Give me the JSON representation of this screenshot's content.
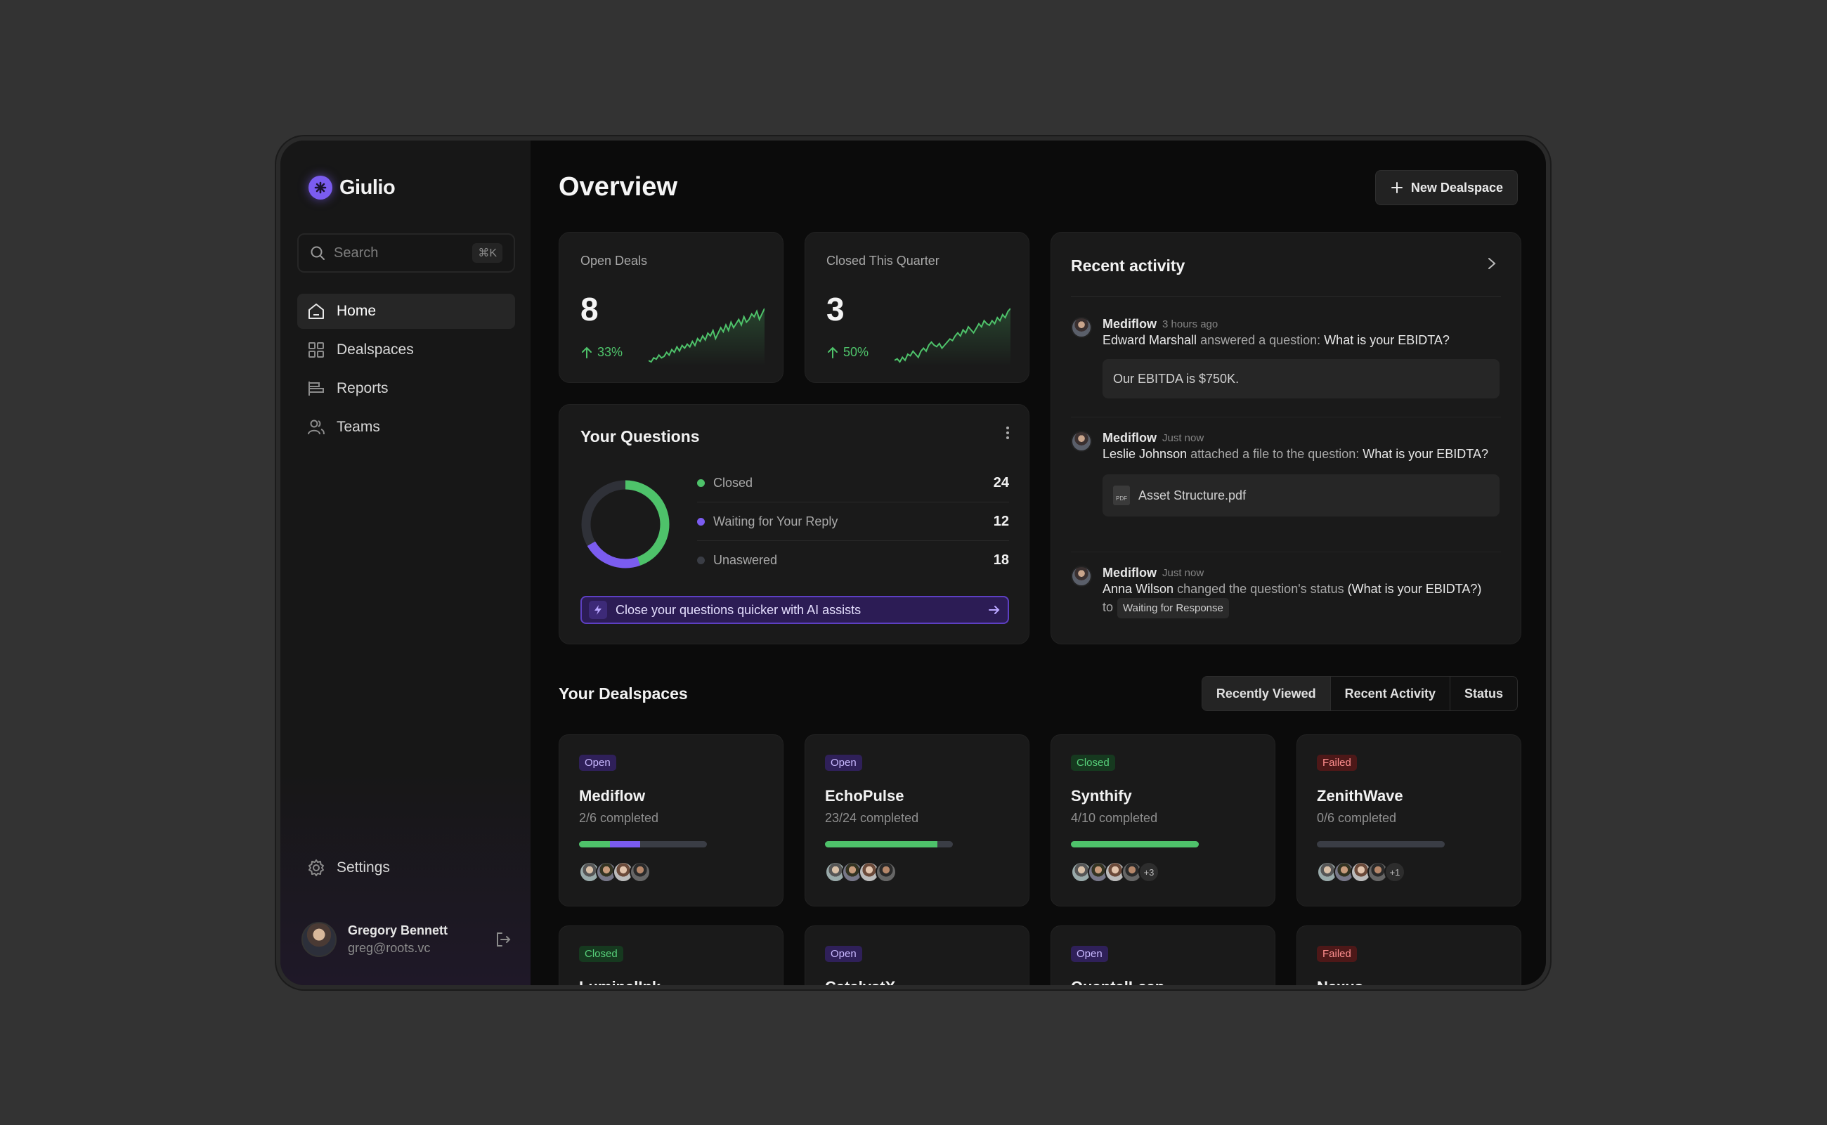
{
  "app": {
    "name": "Giulio"
  },
  "sidebar": {
    "search": {
      "placeholder": "Search",
      "shortcut": "⌘K"
    },
    "items": [
      {
        "label": "Home",
        "icon": "home-icon",
        "active": true
      },
      {
        "label": "Dealspaces",
        "icon": "grid-icon"
      },
      {
        "label": "Reports",
        "icon": "reports-icon"
      },
      {
        "label": "Teams",
        "icon": "users-icon"
      }
    ],
    "settings_label": "Settings",
    "user": {
      "name": "Gregory Bennett",
      "email": "greg@roots.vc"
    }
  },
  "header": {
    "title": "Overview",
    "new_button": "New Dealspace"
  },
  "kpis": [
    {
      "label": "Open Deals",
      "value": "8",
      "change": "33%",
      "trend": [
        2,
        1.5,
        3,
        2.5,
        4,
        3,
        3.5,
        5,
        4,
        6,
        5,
        7,
        5.5,
        7.5,
        6.5,
        8,
        7,
        9,
        7.5,
        10,
        9,
        11,
        9.5,
        12,
        11,
        13,
        10,
        12,
        14,
        12.5,
        15,
        13,
        16,
        14,
        15.5,
        17,
        15,
        18,
        16,
        17,
        19,
        18,
        20,
        17,
        19,
        21
      ]
    },
    {
      "label": "Closed This Quarter",
      "value": "3",
      "change": "50%",
      "trend": [
        2,
        2.5,
        1.5,
        3,
        2,
        4,
        3.5,
        5,
        4,
        3,
        5,
        6,
        5,
        7,
        8,
        7,
        6.5,
        7.5,
        6,
        7,
        8,
        9,
        8.5,
        10,
        11,
        10,
        12,
        11,
        13,
        12,
        11,
        12.5,
        14,
        13,
        15,
        14,
        13.5,
        15,
        14,
        16,
        15,
        17,
        16,
        18,
        19
      ]
    }
  ],
  "questions": {
    "title": "Your Questions",
    "rows": [
      {
        "label": "Closed",
        "count": "24",
        "color": "#4ec26a"
      },
      {
        "label": "Waiting for Your Reply",
        "count": "12",
        "color": "#7b5cf0"
      },
      {
        "label": "Unaswered",
        "count": "18",
        "color": "#3a3d45"
      }
    ],
    "ai_text": "Close your questions quicker with AI assists"
  },
  "activity": {
    "title": "Recent activity",
    "items": [
      {
        "source": "Mediflow",
        "time": "3 hours ago",
        "actor": "Edward Marshall",
        "action": " answered a question: ",
        "target": "What is your EBIDTA?",
        "box": "Our EBITDA is $750K."
      },
      {
        "source": "Mediflow",
        "time": "Just now",
        "actor": "Leslie Johnson",
        "action": " attached a file to the question: ",
        "target": "What is your EBIDTA?",
        "file": "Asset Structure.pdf",
        "file_type": "PDF"
      },
      {
        "source": "Mediflow",
        "time": "Just now",
        "actor": "Anna Wilson",
        "action": " changed the question's status ",
        "target": "(What is your EBIDTA?)",
        "to": "to",
        "tag": "Waiting for Response"
      }
    ]
  },
  "dealspaces": {
    "title": "Your Dealspaces",
    "tabs": [
      "Recently Viewed",
      "Recent Activity",
      "Status"
    ],
    "cards": [
      {
        "status": "Open",
        "name": "Mediflow",
        "progress": "2/6 completed",
        "green": 0.24,
        "purple": 0.24,
        "more": ""
      },
      {
        "status": "Open",
        "name": "EchoPulse",
        "progress": "23/24 completed",
        "green": 0.88,
        "purple": 0,
        "more": ""
      },
      {
        "status": "Closed",
        "name": "Synthify",
        "progress": "4/10 completed",
        "green": 1.0,
        "purple": 0,
        "more": "+3"
      },
      {
        "status": "Failed",
        "name": "ZenithWave",
        "progress": "0/6 completed",
        "green": 0,
        "purple": 0,
        "more": "+1"
      },
      {
        "status": "Closed",
        "name": "LuminalInk"
      },
      {
        "status": "Open",
        "name": "CatalystX"
      },
      {
        "status": "Open",
        "name": "QuantalLeap"
      },
      {
        "status": "Failed",
        "name": "Nexus"
      }
    ]
  }
}
